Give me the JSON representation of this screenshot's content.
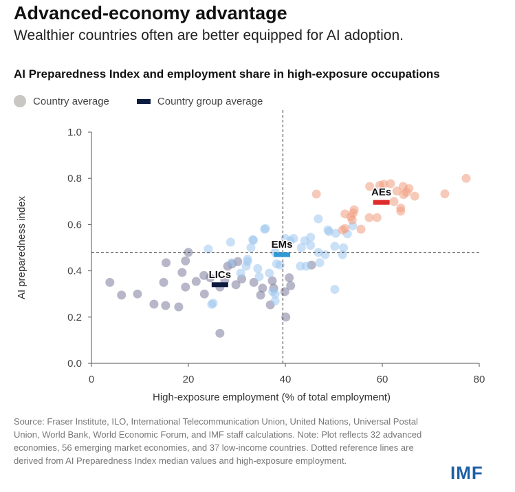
{
  "title": "Advanced-economy advantage",
  "subtitle": "Wealthier countries often are better equipped for AI adoption.",
  "footnote": "Source: Fraser Institute, ILO, International Telecommunication Union, United Nations, Universal Postal Union, World Bank, World Economic Forum, and IMF staff calculations. Note: Plot reflects 32 advanced economies, 56 emerging market economies, and 37 low-income countries. Dotted reference lines are derived from AI Preparedness Index median values and high-exposure employment.",
  "logo": "IMF",
  "colors": {
    "lic": "#7c7c9c",
    "em": "#9ec6ee",
    "ae": "#f09c80",
    "lic_avg": "#0d1b3e",
    "em_avg": "#2e9bd6",
    "ae_avg": "#e02b2b"
  },
  "chart_data": {
    "type": "scatter",
    "title": "AI Preparedness Index and employment share in high-exposure occupations",
    "xlabel": "High-exposure employment (% of total employment)",
    "ylabel": "AI preparedness index",
    "xlim": [
      0,
      80
    ],
    "ylim": [
      0,
      1.0
    ],
    "xticks": [
      "0",
      "20",
      "40",
      "60",
      "80"
    ],
    "yticks": [
      "0.0",
      "0.2",
      "0.4",
      "0.6",
      "0.8",
      "1.0"
    ],
    "legend": [
      "Country average",
      "Country group average"
    ],
    "reference_lines": {
      "x": 39.5,
      "y": 0.48
    },
    "series": [
      {
        "name": "LICs",
        "group_average": [
          26.5,
          0.34
        ],
        "points": [
          [
            3.8,
            0.35
          ],
          [
            6.2,
            0.295
          ],
          [
            9.5,
            0.3
          ],
          [
            12.9,
            0.256
          ],
          [
            15.3,
            0.25
          ],
          [
            18,
            0.244
          ],
          [
            14.9,
            0.35
          ],
          [
            15.4,
            0.435
          ],
          [
            18.7,
            0.393
          ],
          [
            19.4,
            0.443
          ],
          [
            20,
            0.48
          ],
          [
            19.4,
            0.33
          ],
          [
            21.6,
            0.354
          ],
          [
            23.3,
            0.3
          ],
          [
            23.2,
            0.38
          ],
          [
            26.5,
            0.13
          ],
          [
            26.5,
            0.33
          ],
          [
            28.1,
            0.42
          ],
          [
            30.2,
            0.44
          ],
          [
            29.8,
            0.34
          ],
          [
            31,
            0.365
          ],
          [
            33.5,
            0.35
          ],
          [
            35.3,
            0.325
          ],
          [
            34.9,
            0.295
          ],
          [
            37.3,
            0.357
          ],
          [
            37.6,
            0.325
          ],
          [
            36.9,
            0.253
          ],
          [
            39.9,
            0.31
          ],
          [
            40.1,
            0.2
          ],
          [
            40.8,
            0.37
          ],
          [
            41.1,
            0.336
          ],
          [
            45.4,
            0.425
          ],
          [
            27.5,
            0.36
          ],
          [
            29,
            0.43
          ],
          [
            24.5,
            0.37
          ]
        ]
      },
      {
        "name": "EMs",
        "group_average": [
          39.3,
          0.47
        ],
        "points": [
          [
            35.9,
            0.583
          ],
          [
            28.7,
            0.524
          ],
          [
            33.4,
            0.532
          ],
          [
            32.9,
            0.5
          ],
          [
            24.1,
            0.494
          ],
          [
            40,
            0.54
          ],
          [
            41.7,
            0.54
          ],
          [
            43.3,
            0.5
          ],
          [
            45.2,
            0.545
          ],
          [
            45.2,
            0.51
          ],
          [
            46.8,
            0.625
          ],
          [
            48.8,
            0.577
          ],
          [
            50.4,
            0.562
          ],
          [
            50.2,
            0.506
          ],
          [
            52,
            0.5
          ],
          [
            52.8,
            0.56
          ],
          [
            53.9,
            0.595
          ],
          [
            51.8,
            0.47
          ],
          [
            48.2,
            0.47
          ],
          [
            46.8,
            0.48
          ],
          [
            47.1,
            0.435
          ],
          [
            43.1,
            0.42
          ],
          [
            44.3,
            0.42
          ],
          [
            50.2,
            0.32
          ],
          [
            37.9,
            0.48
          ],
          [
            38.2,
            0.43
          ],
          [
            38.9,
            0.425
          ],
          [
            36.7,
            0.39
          ],
          [
            37.4,
            0.31
          ],
          [
            37.9,
            0.27
          ],
          [
            34.3,
            0.41
          ],
          [
            34.6,
            0.375
          ],
          [
            32.2,
            0.45
          ],
          [
            31.9,
            0.42
          ],
          [
            30.8,
            0.39
          ],
          [
            28.9,
            0.435
          ],
          [
            25.1,
            0.26
          ],
          [
            24.8,
            0.255
          ],
          [
            33.3,
            0.535
          ],
          [
            35.7,
            0.58
          ],
          [
            32.2,
            0.44
          ],
          [
            37.9,
            0.3
          ],
          [
            41,
            0.53
          ],
          [
            44,
            0.53
          ],
          [
            49,
            0.57
          ]
        ]
      },
      {
        "name": "AEs",
        "group_average": [
          59.8,
          0.696
        ],
        "points": [
          [
            46.4,
            0.732
          ],
          [
            57.4,
            0.765
          ],
          [
            60.3,
            0.774
          ],
          [
            61.7,
            0.777
          ],
          [
            64.3,
            0.765
          ],
          [
            65.5,
            0.756
          ],
          [
            64.4,
            0.73
          ],
          [
            66.7,
            0.723
          ],
          [
            62.4,
            0.7
          ],
          [
            63.8,
            0.672
          ],
          [
            63.8,
            0.658
          ],
          [
            72.9,
            0.733
          ],
          [
            77.3,
            0.8
          ],
          [
            52.3,
            0.646
          ],
          [
            54.2,
            0.664
          ],
          [
            53.5,
            0.634
          ],
          [
            53.8,
            0.62
          ],
          [
            57.3,
            0.63
          ],
          [
            58.9,
            0.63
          ],
          [
            55.6,
            0.58
          ],
          [
            52.3,
            0.583
          ],
          [
            51.8,
            0.577
          ],
          [
            59.5,
            0.77
          ],
          [
            63,
            0.745
          ],
          [
            65,
            0.74
          ],
          [
            54,
            0.65
          ]
        ]
      }
    ]
  }
}
